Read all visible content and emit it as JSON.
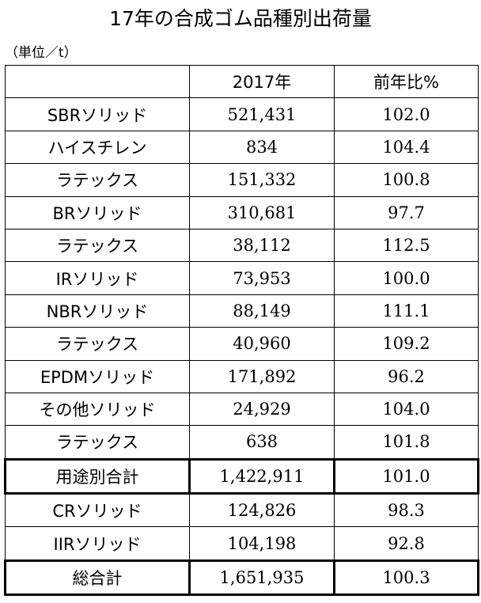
{
  "title": "17年の合成ゴム品種別出荷量",
  "unit": "（単位／t）",
  "columns": [
    "",
    "2017年",
    "前年比%"
  ],
  "rows": [
    {
      "label": "SBRソリッド",
      "qty": "521,431",
      "ratio": "102.0"
    },
    {
      "label": "ハイスチレン",
      "qty": "834",
      "ratio": "104.4"
    },
    {
      "label": "ラテックス",
      "qty": "151,332",
      "ratio": "100.8"
    },
    {
      "label": "BRソリッド",
      "qty": "310,681",
      "ratio": "97.7"
    },
    {
      "label": "ラテックス",
      "qty": "38,112",
      "ratio": "112.5"
    },
    {
      "label": "IRソリッド",
      "qty": "73,953",
      "ratio": "100.0"
    },
    {
      "label": "NBRソリッド",
      "qty": "88,149",
      "ratio": "111.1"
    },
    {
      "label": "ラテックス",
      "qty": "40,960",
      "ratio": "109.2"
    },
    {
      "label": "EPDMソリッド",
      "qty": "171,892",
      "ratio": "96.2"
    },
    {
      "label": "その他ソリッド",
      "qty": "24,929",
      "ratio": "104.0"
    },
    {
      "label": "ラテックス",
      "qty": "638",
      "ratio": "101.8"
    },
    {
      "label": "用途別合計",
      "qty": "1,422,911",
      "ratio": "101.0"
    },
    {
      "label": "CRソリッド",
      "qty": "124,826",
      "ratio": "98.3"
    },
    {
      "label": "IIRソリッド",
      "qty": "104,198",
      "ratio": "92.8"
    },
    {
      "label": "総合計",
      "qty": "1,651,935",
      "ratio": "100.3"
    }
  ]
}
